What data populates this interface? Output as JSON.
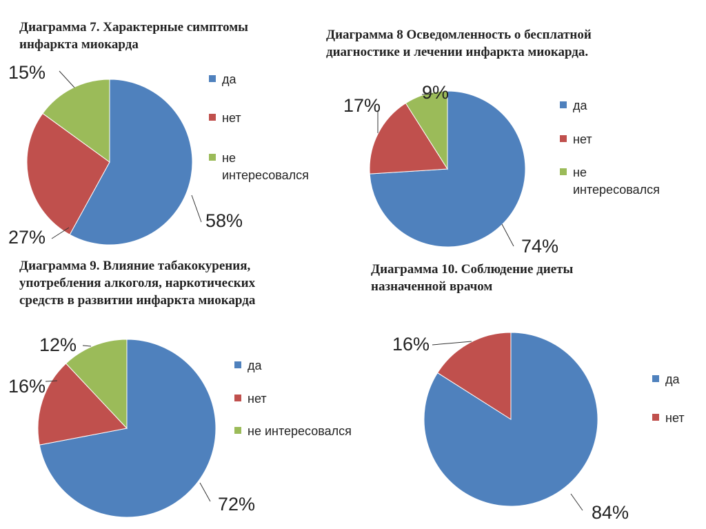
{
  "chart_data": [
    {
      "type": "pie",
      "title": "Диаграмма 7. Характерные симптомы\nинфаркта миокарда",
      "series": [
        {
          "name": "да",
          "value": 58,
          "label": "58%",
          "color": "#4F81BD"
        },
        {
          "name": "нет",
          "value": 27,
          "label": "27%",
          "color": "#C0504D"
        },
        {
          "name": "не\nинтересовался",
          "value": 15,
          "label": "15%",
          "color": "#9BBB59"
        }
      ],
      "legend": "right"
    },
    {
      "type": "pie",
      "title": "Диаграмма 8  Осведомленность о бесплатной\nдиагностике и лечении инфаркта миокарда.",
      "series": [
        {
          "name": "да",
          "value": 74,
          "label": "74%",
          "color": "#4F81BD"
        },
        {
          "name": "нет",
          "value": 17,
          "label": "17%",
          "color": "#C0504D"
        },
        {
          "name": "не\nинтересовался",
          "value": 9,
          "label": "9%",
          "color": "#9BBB59"
        }
      ],
      "legend": "right"
    },
    {
      "type": "pie",
      "title": "Диаграмма 9. Влияние табакокурения,\nупотребления алкоголя, наркотических\nсредств в развитии  инфаркта миокарда",
      "series": [
        {
          "name": "да",
          "value": 72,
          "label": "72%",
          "color": "#4F81BD"
        },
        {
          "name": "нет",
          "value": 16,
          "label": "16%",
          "color": "#C0504D"
        },
        {
          "name": "не интересовался",
          "value": 12,
          "label": "12%",
          "color": "#9BBB59"
        }
      ],
      "legend": "right"
    },
    {
      "type": "pie",
      "title": "Диаграмма 10. Соблюдение диеты\nназначенной врачом",
      "series": [
        {
          "name": "да",
          "value": 84,
          "label": "84%",
          "color": "#4F81BD"
        },
        {
          "name": "нет",
          "value": 16,
          "label": "16%",
          "color": "#C0504D"
        }
      ],
      "legend": "right"
    }
  ]
}
